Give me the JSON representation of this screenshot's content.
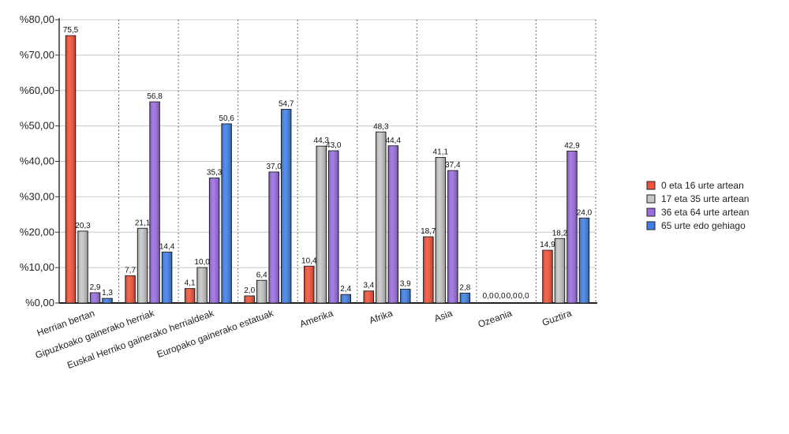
{
  "chart_data": {
    "type": "bar",
    "categories": [
      "Herrian bertan",
      "Gipuzkoako gainerako herriak",
      "Euskal Herriko gainerako herrialdeak",
      "Europako gainerako estatuak",
      "Amerika",
      "Afrika",
      "Asia",
      "Ozeania",
      "Guztira"
    ],
    "series": [
      {
        "name": "0 eta 16 urte artean",
        "color": "#f4523a",
        "values": [
          75.5,
          7.7,
          4.1,
          2.0,
          10.4,
          3.4,
          18.7,
          0.0,
          14.9
        ],
        "labels": [
          "75,5",
          "7,7",
          "4,1",
          "2,0",
          "10,4",
          "3,4",
          "18,7",
          "0,0",
          "14,9"
        ]
      },
      {
        "name": "17 eta 35 urte artean",
        "color": "#c7c7c7",
        "values": [
          20.3,
          21.1,
          10.0,
          6.4,
          44.3,
          48.3,
          41.1,
          0.0,
          18.2
        ],
        "labels": [
          "20,3",
          "21,1",
          "10,0",
          "6,4",
          "44,3",
          "48,3",
          "41,1",
          "0,0",
          "18,2"
        ]
      },
      {
        "name": "36 eta 64 urte artean",
        "color": "#9c6ee2",
        "values": [
          2.9,
          56.8,
          35.3,
          37.0,
          43.0,
          44.4,
          37.4,
          0.0,
          42.9
        ],
        "labels": [
          "2,9",
          "56,8",
          "35,3",
          "37,0",
          "43,0",
          "44,4",
          "37,4",
          "0,0",
          "42,9"
        ]
      },
      {
        "name": "65 urte edo gehiago",
        "color": "#3f80e8",
        "values": [
          1.3,
          14.4,
          50.6,
          54.7,
          2.4,
          3.9,
          2.8,
          0.0,
          24.0
        ],
        "labels": [
          "1,3",
          "14,4",
          "50,6",
          "54,7",
          "2,4",
          "3,9",
          "2,8",
          "0,0",
          "24,0"
        ]
      }
    ],
    "y_ticks": [
      "%0,00",
      "%10,00",
      "%20,00",
      "%30,00",
      "%40,00",
      "%50,00",
      "%60,00",
      "%70,00",
      "%80,00"
    ],
    "ylim": [
      0,
      80
    ],
    "grid": true,
    "legend_position": "right"
  }
}
